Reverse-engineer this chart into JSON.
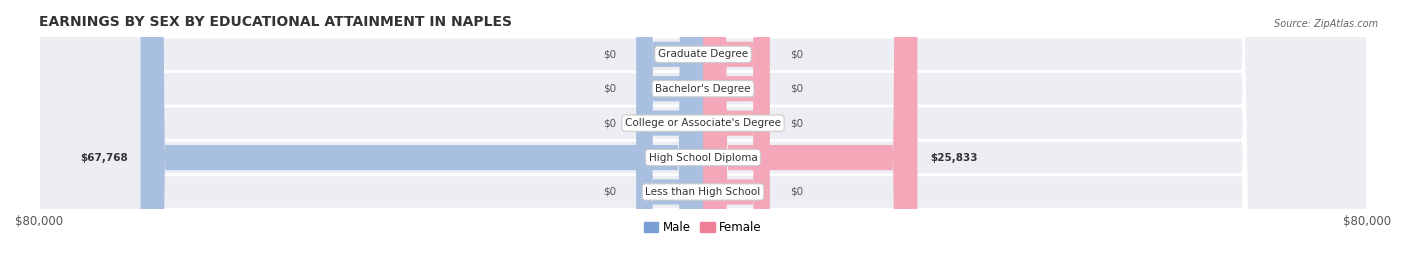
{
  "title": "EARNINGS BY SEX BY EDUCATIONAL ATTAINMENT IN NAPLES",
  "source": "Source: ZipAtlas.com",
  "categories": [
    "Less than High School",
    "High School Diploma",
    "College or Associate's Degree",
    "Bachelor's Degree",
    "Graduate Degree"
  ],
  "male_values": [
    0,
    67768,
    0,
    0,
    0
  ],
  "female_values": [
    0,
    25833,
    0,
    0,
    0
  ],
  "male_color": "#a8bfdf",
  "female_color": "#f4a7b9",
  "male_color_legend": "#7b9fd4",
  "female_color_legend": "#f08098",
  "bar_bg_color": "#e8eaf0",
  "row_bg_even": "#f0f2f7",
  "row_bg_odd": "#e8eaf0",
  "max_value": 80000,
  "xlabel_left": "$80,000",
  "xlabel_right": "$80,000",
  "title_fontsize": 10,
  "label_fontsize": 8.5,
  "tick_fontsize": 8.5,
  "background_color": "#ffffff"
}
